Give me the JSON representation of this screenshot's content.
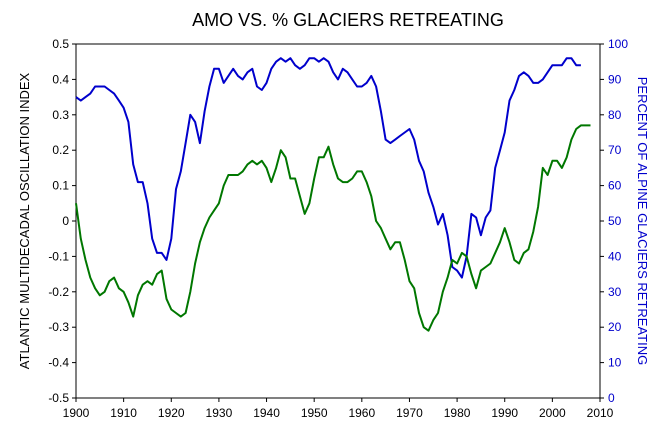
{
  "chart_data": {
    "type": "line",
    "title": "AMO VS. % GLACIERS RETREATING",
    "xlabel": "",
    "ylabel": "ATLANTIC MULTIDECADAL OSCILLATION INDEX",
    "ylabel_right": "PERCENT OF ALPINE GLACIERS RETREATING",
    "xlim": [
      1900,
      2010
    ],
    "ylim": [
      -0.5,
      0.5
    ],
    "ylim_right": [
      0,
      100
    ],
    "x_ticks": [
      "1900",
      "1910",
      "1920",
      "1930",
      "1940",
      "1950",
      "1960",
      "1970",
      "1980",
      "1990",
      "2000",
      "2010"
    ],
    "y_ticks": [
      "0.5",
      "0.4",
      "0.3",
      "0.2",
      "0.1",
      "0",
      "-0.1",
      "-0.2",
      "-0.3",
      "-0.4",
      "-0.5"
    ],
    "y_ticks_right": [
      "100",
      "90",
      "80",
      "70",
      "60",
      "50",
      "40",
      "30",
      "20",
      "10",
      "0"
    ],
    "grid": false,
    "legend": "none",
    "series": [
      {
        "axis": "right",
        "color": "#0000cc",
        "points": [
          [
            1900,
            85
          ],
          [
            1901,
            84
          ],
          [
            1902,
            85
          ],
          [
            1903,
            86
          ],
          [
            1904,
            88
          ],
          [
            1905,
            88
          ],
          [
            1906,
            88
          ],
          [
            1907,
            87
          ],
          [
            1908,
            86
          ],
          [
            1909,
            84
          ],
          [
            1910,
            82
          ],
          [
            1911,
            78
          ],
          [
            1912,
            66
          ],
          [
            1913,
            61
          ],
          [
            1914,
            61
          ],
          [
            1915,
            55
          ],
          [
            1916,
            45
          ],
          [
            1917,
            41
          ],
          [
            1918,
            41
          ],
          [
            1919,
            39
          ],
          [
            1920,
            45
          ],
          [
            1921,
            59
          ],
          [
            1922,
            64
          ],
          [
            1923,
            72
          ],
          [
            1924,
            80
          ],
          [
            1925,
            78
          ],
          [
            1926,
            72
          ],
          [
            1927,
            81
          ],
          [
            1928,
            88
          ],
          [
            1929,
            93
          ],
          [
            1930,
            93
          ],
          [
            1931,
            89
          ],
          [
            1932,
            91
          ],
          [
            1933,
            93
          ],
          [
            1934,
            91
          ],
          [
            1935,
            90
          ],
          [
            1936,
            92
          ],
          [
            1937,
            93
          ],
          [
            1938,
            88
          ],
          [
            1939,
            87
          ],
          [
            1940,
            89
          ],
          [
            1941,
            93
          ],
          [
            1942,
            95
          ],
          [
            1943,
            96
          ],
          [
            1944,
            95
          ],
          [
            1945,
            96
          ],
          [
            1946,
            94
          ],
          [
            1947,
            93
          ],
          [
            1948,
            94
          ],
          [
            1949,
            96
          ],
          [
            1950,
            96
          ],
          [
            1951,
            95
          ],
          [
            1952,
            96
          ],
          [
            1953,
            95
          ],
          [
            1954,
            92
          ],
          [
            1955,
            90
          ],
          [
            1956,
            93
          ],
          [
            1957,
            92
          ],
          [
            1958,
            90
          ],
          [
            1959,
            88
          ],
          [
            1960,
            88
          ],
          [
            1961,
            89
          ],
          [
            1962,
            91
          ],
          [
            1963,
            88
          ],
          [
            1964,
            81
          ],
          [
            1965,
            73
          ],
          [
            1966,
            72
          ],
          [
            1967,
            73
          ],
          [
            1968,
            74
          ],
          [
            1969,
            75
          ],
          [
            1970,
            76
          ],
          [
            1971,
            73
          ],
          [
            1972,
            67
          ],
          [
            1973,
            64
          ],
          [
            1974,
            58
          ],
          [
            1975,
            54
          ],
          [
            1976,
            49
          ],
          [
            1977,
            52
          ],
          [
            1978,
            46
          ],
          [
            1979,
            37
          ],
          [
            1980,
            36
          ],
          [
            1981,
            34
          ],
          [
            1982,
            40
          ],
          [
            1983,
            52
          ],
          [
            1984,
            51
          ],
          [
            1985,
            46
          ],
          [
            1986,
            51
          ],
          [
            1987,
            53
          ],
          [
            1988,
            65
          ],
          [
            1989,
            70
          ],
          [
            1990,
            75
          ],
          [
            1991,
            84
          ],
          [
            1992,
            87
          ],
          [
            1993,
            91
          ],
          [
            1994,
            92
          ],
          [
            1995,
            91
          ],
          [
            1996,
            89
          ],
          [
            1997,
            89
          ],
          [
            1998,
            90
          ],
          [
            1999,
            92
          ],
          [
            2000,
            94
          ],
          [
            2001,
            94
          ],
          [
            2002,
            94
          ],
          [
            2003,
            96
          ],
          [
            2004,
            96
          ],
          [
            2005,
            94
          ],
          [
            2006,
            94
          ]
        ]
      },
      {
        "axis": "left",
        "color": "#007700",
        "points": [
          [
            1900,
            0.05
          ],
          [
            1901,
            -0.05
          ],
          [
            1902,
            -0.11
          ],
          [
            1903,
            -0.16
          ],
          [
            1904,
            -0.19
          ],
          [
            1905,
            -0.21
          ],
          [
            1906,
            -0.2
          ],
          [
            1907,
            -0.17
          ],
          [
            1908,
            -0.16
          ],
          [
            1909,
            -0.19
          ],
          [
            1910,
            -0.2
          ],
          [
            1911,
            -0.23
          ],
          [
            1912,
            -0.27
          ],
          [
            1913,
            -0.21
          ],
          [
            1914,
            -0.18
          ],
          [
            1915,
            -0.17
          ],
          [
            1916,
            -0.18
          ],
          [
            1917,
            -0.15
          ],
          [
            1918,
            -0.14
          ],
          [
            1919,
            -0.22
          ],
          [
            1920,
            -0.25
          ],
          [
            1921,
            -0.26
          ],
          [
            1922,
            -0.27
          ],
          [
            1923,
            -0.26
          ],
          [
            1924,
            -0.2
          ],
          [
            1925,
            -0.12
          ],
          [
            1926,
            -0.06
          ],
          [
            1927,
            -0.02
          ],
          [
            1928,
            0.01
          ],
          [
            1929,
            0.03
          ],
          [
            1930,
            0.05
          ],
          [
            1931,
            0.1
          ],
          [
            1932,
            0.13
          ],
          [
            1933,
            0.13
          ],
          [
            1934,
            0.13
          ],
          [
            1935,
            0.14
          ],
          [
            1936,
            0.16
          ],
          [
            1937,
            0.17
          ],
          [
            1938,
            0.16
          ],
          [
            1939,
            0.17
          ],
          [
            1940,
            0.15
          ],
          [
            1941,
            0.11
          ],
          [
            1942,
            0.15
          ],
          [
            1943,
            0.2
          ],
          [
            1944,
            0.18
          ],
          [
            1945,
            0.12
          ],
          [
            1946,
            0.12
          ],
          [
            1947,
            0.07
          ],
          [
            1948,
            0.02
          ],
          [
            1949,
            0.05
          ],
          [
            1950,
            0.12
          ],
          [
            1951,
            0.18
          ],
          [
            1952,
            0.18
          ],
          [
            1953,
            0.21
          ],
          [
            1954,
            0.16
          ],
          [
            1955,
            0.12
          ],
          [
            1956,
            0.11
          ],
          [
            1957,
            0.11
          ],
          [
            1958,
            0.12
          ],
          [
            1959,
            0.14
          ],
          [
            1960,
            0.14
          ],
          [
            1961,
            0.11
          ],
          [
            1962,
            0.07
          ],
          [
            1963,
            0.0
          ],
          [
            1964,
            -0.02
          ],
          [
            1965,
            -0.05
          ],
          [
            1966,
            -0.08
          ],
          [
            1967,
            -0.06
          ],
          [
            1968,
            -0.06
          ],
          [
            1969,
            -0.11
          ],
          [
            1970,
            -0.17
          ],
          [
            1971,
            -0.19
          ],
          [
            1972,
            -0.26
          ],
          [
            1973,
            -0.3
          ],
          [
            1974,
            -0.31
          ],
          [
            1975,
            -0.28
          ],
          [
            1976,
            -0.26
          ],
          [
            1977,
            -0.2
          ],
          [
            1978,
            -0.16
          ],
          [
            1979,
            -0.11
          ],
          [
            1980,
            -0.12
          ],
          [
            1981,
            -0.09
          ],
          [
            1982,
            -0.1
          ],
          [
            1983,
            -0.15
          ],
          [
            1984,
            -0.19
          ],
          [
            1985,
            -0.14
          ],
          [
            1986,
            -0.13
          ],
          [
            1987,
            -0.12
          ],
          [
            1988,
            -0.09
          ],
          [
            1989,
            -0.06
          ],
          [
            1990,
            -0.02
          ],
          [
            1991,
            -0.06
          ],
          [
            1992,
            -0.11
          ],
          [
            1993,
            -0.12
          ],
          [
            1994,
            -0.09
          ],
          [
            1995,
            -0.08
          ],
          [
            1996,
            -0.03
          ],
          [
            1997,
            0.04
          ],
          [
            1998,
            0.15
          ],
          [
            1999,
            0.13
          ],
          [
            2000,
            0.17
          ],
          [
            2001,
            0.17
          ],
          [
            2002,
            0.15
          ],
          [
            2003,
            0.18
          ],
          [
            2004,
            0.23
          ],
          [
            2005,
            0.26
          ],
          [
            2006,
            0.27
          ],
          [
            2007,
            0.27
          ],
          [
            2008,
            0.27
          ]
        ]
      }
    ]
  }
}
